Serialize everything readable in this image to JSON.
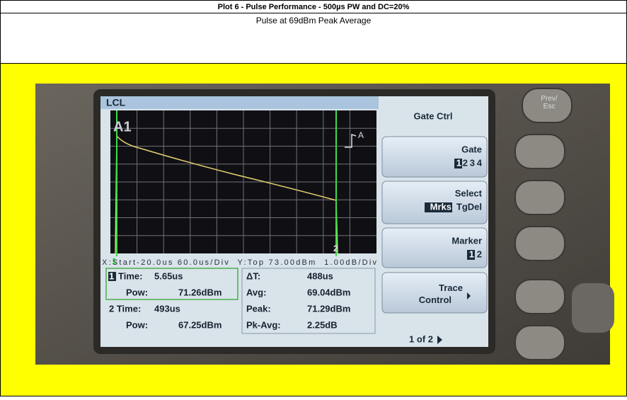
{
  "header": {
    "title": "Plot 6 - Pulse Performance - 500µs PW and DC=20%",
    "subtitle": "Pulse at 69dBm Peak Average"
  },
  "screen": {
    "mode": "LCL",
    "channel": "A1",
    "trigger": "A",
    "axis_info": "X:Start-20.0us 60.0us/Div  Y:Top 73.00dBm  1.00dB/Div",
    "marker_labels": [
      "1",
      "2"
    ],
    "readout": {
      "marker1_index": "1",
      "left": [
        [
          "Time:",
          "5.65us"
        ],
        [
          "Pow:",
          "71.26dBm"
        ],
        [
          "2 Time:",
          "493us"
        ],
        [
          "Pow:",
          "67.25dBm"
        ]
      ],
      "right": [
        [
          "ΔT:",
          "488us"
        ],
        [
          "Avg:",
          "69.04dBm"
        ],
        [
          "Peak:",
          "71.29dBm"
        ],
        [
          "Pk-Avg:",
          "2.25dB"
        ]
      ]
    }
  },
  "softkeys": {
    "title": "Gate Ctrl",
    "gate": {
      "label": "Gate",
      "options": [
        "1",
        "2",
        "3",
        "4"
      ]
    },
    "select": {
      "label": "Select",
      "options": [
        "Mrks",
        "TgDel"
      ]
    },
    "marker": {
      "label": "Marker",
      "options": [
        "1",
        "2"
      ]
    },
    "trace": {
      "label": "Trace Control"
    },
    "page": "1 of 2"
  },
  "hardware": {
    "prev_esc": "Prev/ Esc"
  }
}
